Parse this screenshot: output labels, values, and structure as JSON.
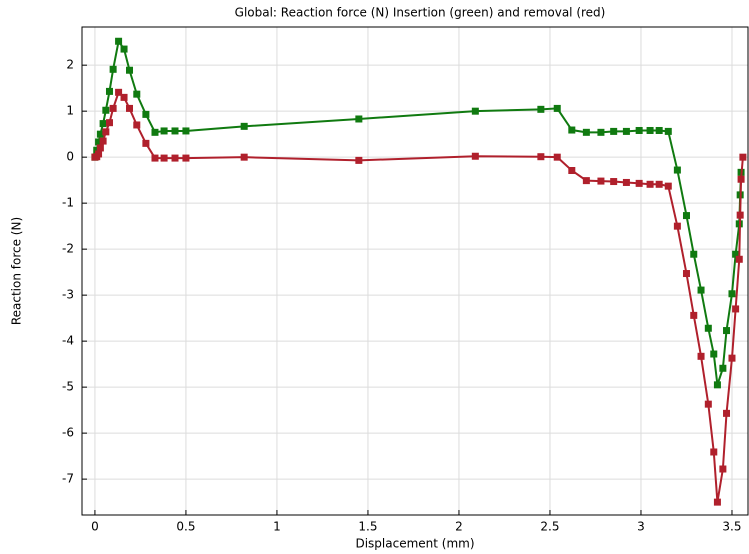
{
  "chart_data": {
    "type": "line",
    "title": "Global: Reaction force (N)   Insertion (green) and removal (red)",
    "x_label": "Displacement (mm)",
    "y_label": "Reaction force (N)",
    "xlim": [
      -0.071,
      3.588
    ],
    "ylim": [
      -7.78,
      2.83
    ],
    "xticks": [
      0,
      0.5,
      1,
      1.5,
      2,
      2.5,
      3,
      3.5
    ],
    "yticks": [
      2,
      1,
      0,
      -1,
      -2,
      -3,
      -4,
      -5,
      -6,
      -7
    ],
    "grid": true,
    "series": [
      {
        "color": "#107a10",
        "x": [
          0,
          0.01,
          0.02,
          0.03,
          0.045,
          0.06,
          0.08,
          0.1,
          0.13,
          0.16,
          0.19,
          0.23,
          0.28,
          0.33,
          0.38,
          0.44,
          0.5,
          0.82,
          1.45,
          2.09,
          2.45,
          2.54,
          2.62,
          2.7,
          2.78,
          2.85,
          2.92,
          2.99,
          3.05,
          3.1,
          3.15,
          3.2,
          3.25,
          3.29,
          3.33,
          3.37,
          3.4,
          3.42,
          3.45,
          3.47,
          3.5,
          3.52,
          3.54,
          3.545,
          3.55
        ],
        "values": [
          0,
          0.15,
          0.33,
          0.5,
          0.73,
          1.02,
          1.43,
          1.91,
          2.52,
          2.35,
          1.89,
          1.37,
          0.93,
          0.54,
          0.57,
          0.57,
          0.57,
          0.67,
          0.83,
          1.0,
          1.04,
          1.06,
          0.59,
          0.54,
          0.54,
          0.56,
          0.56,
          0.58,
          0.58,
          0.58,
          0.56,
          -0.28,
          -1.27,
          -2.11,
          -2.89,
          -3.72,
          -4.28,
          -4.95,
          -4.59,
          -3.77,
          -2.97,
          -2.11,
          -1.45,
          -0.82,
          -0.33
        ]
      },
      {
        "color": "#b0202c",
        "x": [
          0,
          0.01,
          0.02,
          0.03,
          0.045,
          0.06,
          0.08,
          0.1,
          0.13,
          0.16,
          0.19,
          0.23,
          0.28,
          0.33,
          0.38,
          0.44,
          0.5,
          0.82,
          1.45,
          2.09,
          2.45,
          2.54,
          2.62,
          2.7,
          2.78,
          2.85,
          2.92,
          2.99,
          3.05,
          3.1,
          3.15,
          3.2,
          3.25,
          3.29,
          3.33,
          3.37,
          3.4,
          3.42,
          3.45,
          3.47,
          3.5,
          3.52,
          3.54,
          3.545,
          3.55,
          3.56
        ],
        "values": [
          0,
          0.01,
          0.07,
          0.2,
          0.35,
          0.55,
          0.75,
          1.06,
          1.41,
          1.3,
          1.06,
          0.7,
          0.3,
          -0.02,
          -0.02,
          -0.02,
          -0.02,
          0,
          -0.07,
          0.02,
          0.01,
          0,
          -0.29,
          -0.51,
          -0.52,
          -0.53,
          -0.55,
          -0.57,
          -0.59,
          -0.59,
          -0.63,
          -1.5,
          -2.53,
          -3.44,
          -4.33,
          -5.37,
          -6.41,
          -7.5,
          -6.78,
          -5.57,
          -4.37,
          -3.3,
          -2.22,
          -1.26,
          -0.48,
          0
        ]
      }
    ]
  }
}
